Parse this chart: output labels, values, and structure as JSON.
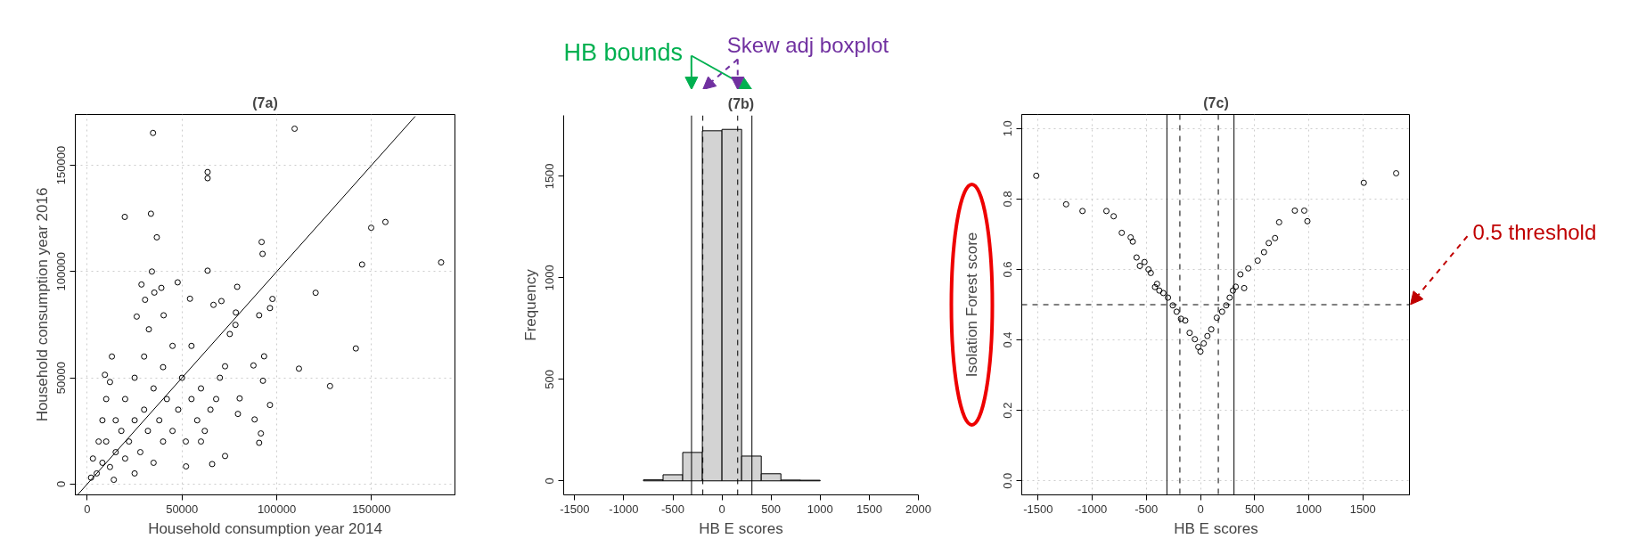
{
  "chart_data": [
    {
      "type": "scatter",
      "title": "(7a)",
      "xlabel": "Household consumption year 2014",
      "ylabel": "Household consumption year 2016",
      "grid": true,
      "xlim": [
        -6300,
        194000
      ],
      "xticks": [
        0,
        50000,
        100000,
        150000
      ],
      "ylim": [
        -5100,
        173900
      ],
      "yticks": [
        0,
        50000,
        100000,
        150000
      ],
      "series": [
        {
          "type": "scatter",
          "marker": "circle",
          "color": "#000000",
          "x": [
            34700,
            109400,
            63500,
            63500,
            19800,
            33600,
            36700,
            149800,
            157300,
            92000,
            92500,
            145000,
            186700,
            63500,
            34100,
            120500,
            28600,
            47700,
            79100,
            97700,
            96400,
            128100,
            141700,
            111700,
            90700,
            91600,
            72700,
            65900,
            52100,
            96400,
            88300,
            92700,
            93300,
            87700,
            78400,
            78200,
            75200,
            90700,
            66600,
            70800,
            54200,
            30500,
            39100,
            35400,
            40300,
            26100,
            32500,
            13000,
            9300,
            72700,
            80400,
            79500,
            5000,
            8000,
            10000,
            12000,
            15000,
            15000,
            18000,
            20000,
            20000,
            22000,
            25000,
            25000,
            28000,
            30000,
            30000,
            32000,
            35000,
            35000,
            38000,
            40000,
            40000,
            42000,
            45000,
            45000,
            48000,
            50000,
            52000,
            55000,
            58000,
            60000,
            62000,
            65000,
            3000,
            6000,
            8000,
            10000,
            12000,
            2000,
            14000,
            25000,
            60000,
            70000,
            68000,
            55000
          ],
          "values": [
            165200,
            167200,
            146800,
            143900,
            125700,
            127200,
            116100,
            120600,
            123300,
            113900,
            108300,
            103300,
            104300,
            100400,
            100000,
            90000,
            93900,
            94900,
            92800,
            87100,
            82800,
            46100,
            63800,
            54300,
            19400,
            23800,
            13200,
            9400,
            8300,
            37200,
            30400,
            48600,
            60100,
            55800,
            80700,
            74900,
            70600,
            79400,
            84300,
            86100,
            87200,
            86700,
            92300,
            90100,
            79400,
            78800,
            72800,
            60000,
            51400,
            55400,
            40300,
            33000,
            5000,
            10000,
            20000,
            8000,
            15000,
            30000,
            25000,
            12000,
            40000,
            20000,
            30000,
            50000,
            15000,
            35000,
            60000,
            25000,
            45000,
            10000,
            30000,
            55000,
            20000,
            40000,
            65000,
            25000,
            35000,
            50000,
            20000,
            40000,
            30000,
            45000,
            25000,
            35000,
            12000,
            20000,
            30000,
            40000,
            48000,
            3000,
            2000,
            5000,
            20000,
            50000,
            40000,
            65000
          ]
        },
        {
          "type": "line",
          "color": "#000000",
          "x": [
            -5000,
            173000
          ],
          "values": [
            -5000,
            173000
          ]
        }
      ]
    },
    {
      "type": "histogram",
      "title": "(7b)",
      "xlabel": "HB E scores",
      "ylabel": "Frequency",
      "color": "#d3d3d3",
      "grid": false,
      "bins": [
        -800,
        -600,
        -400,
        -200,
        0,
        200,
        400,
        600,
        800,
        1000
      ],
      "values": [
        5,
        30,
        140,
        1724,
        1731,
        122,
        35,
        4,
        3
      ],
      "xlim": [
        -1612,
        2000
      ],
      "xticks": [
        -1500,
        -1000,
        -500,
        0,
        500,
        1000,
        1500,
        2000
      ],
      "ylim": [
        -69,
        1800
      ],
      "yticks": [
        0,
        500,
        1000,
        1500
      ],
      "ref_lines": [
        {
          "axis": "x",
          "value": -310,
          "label": "HB bounds",
          "line_style": "solid"
        },
        {
          "axis": "x",
          "value": 305,
          "line_style": "solid"
        },
        {
          "axis": "x",
          "value": 160,
          "label": "Skew adj boxplot",
          "line_style": "dashed"
        },
        {
          "axis": "x",
          "value": -195,
          "line_style": "dashed"
        }
      ]
    },
    {
      "type": "scatter",
      "title": "(7c)",
      "xlabel": "HB E scores",
      "ylabel": "Isolation Forest score",
      "grid": true,
      "xlim": [
        -1651,
        1939
      ],
      "xticks": [
        -1500,
        -1000,
        -500,
        0,
        500,
        1000,
        1500
      ],
      "ylim": [
        -0.04,
        1.04
      ],
      "yticks": [
        {
          "value": 0,
          "label": "0.0"
        },
        0.2,
        0.4,
        0.6,
        0.8,
        {
          "value": 1,
          "label": "1.0"
        }
      ],
      "series": [
        {
          "type": "scatter",
          "marker": "circle",
          "color": "#000000",
          "x": [
            -1517,
            -1241,
            -1090,
            -869,
            -802,
            -727,
            -645,
            -625,
            -590,
            -517,
            -459,
            -401,
            -343,
            -256,
            -140,
            -52,
            0,
            64,
            151,
            238,
            326,
            369,
            442,
            529,
            587,
            631,
            689,
            727,
            872,
            959,
            988,
            1509,
            1808,
            404,
            -420,
            -380,
            -300,
            -220,
            -180,
            -100,
            -20,
            30,
            100,
            200,
            270,
            300,
            -560,
            -480
          ],
          "values": [
            0.866,
            0.785,
            0.766,
            0.766,
            0.751,
            0.704,
            0.691,
            0.679,
            0.634,
            0.621,
            0.59,
            0.559,
            0.533,
            0.498,
            0.455,
            0.402,
            0.367,
            0.411,
            0.463,
            0.498,
            0.551,
            0.586,
            0.603,
            0.625,
            0.649,
            0.675,
            0.689,
            0.734,
            0.767,
            0.767,
            0.737,
            0.846,
            0.873,
            0.547,
            0.55,
            0.54,
            0.52,
            0.48,
            0.46,
            0.42,
            0.38,
            0.39,
            0.43,
            0.48,
            0.52,
            0.54,
            0.61,
            0.6
          ]
        }
      ],
      "ref_lines": [
        {
          "axis": "x",
          "value": -310,
          "line_style": "solid"
        },
        {
          "axis": "x",
          "value": 310,
          "line_style": "solid"
        },
        {
          "axis": "x",
          "value": -190,
          "line_style": "dashed"
        },
        {
          "axis": "x",
          "value": 165,
          "line_style": "dashed"
        },
        {
          "axis": "y",
          "value": 0.5,
          "label": "0.5 threshold",
          "line_style": "dashed"
        }
      ]
    }
  ]
}
